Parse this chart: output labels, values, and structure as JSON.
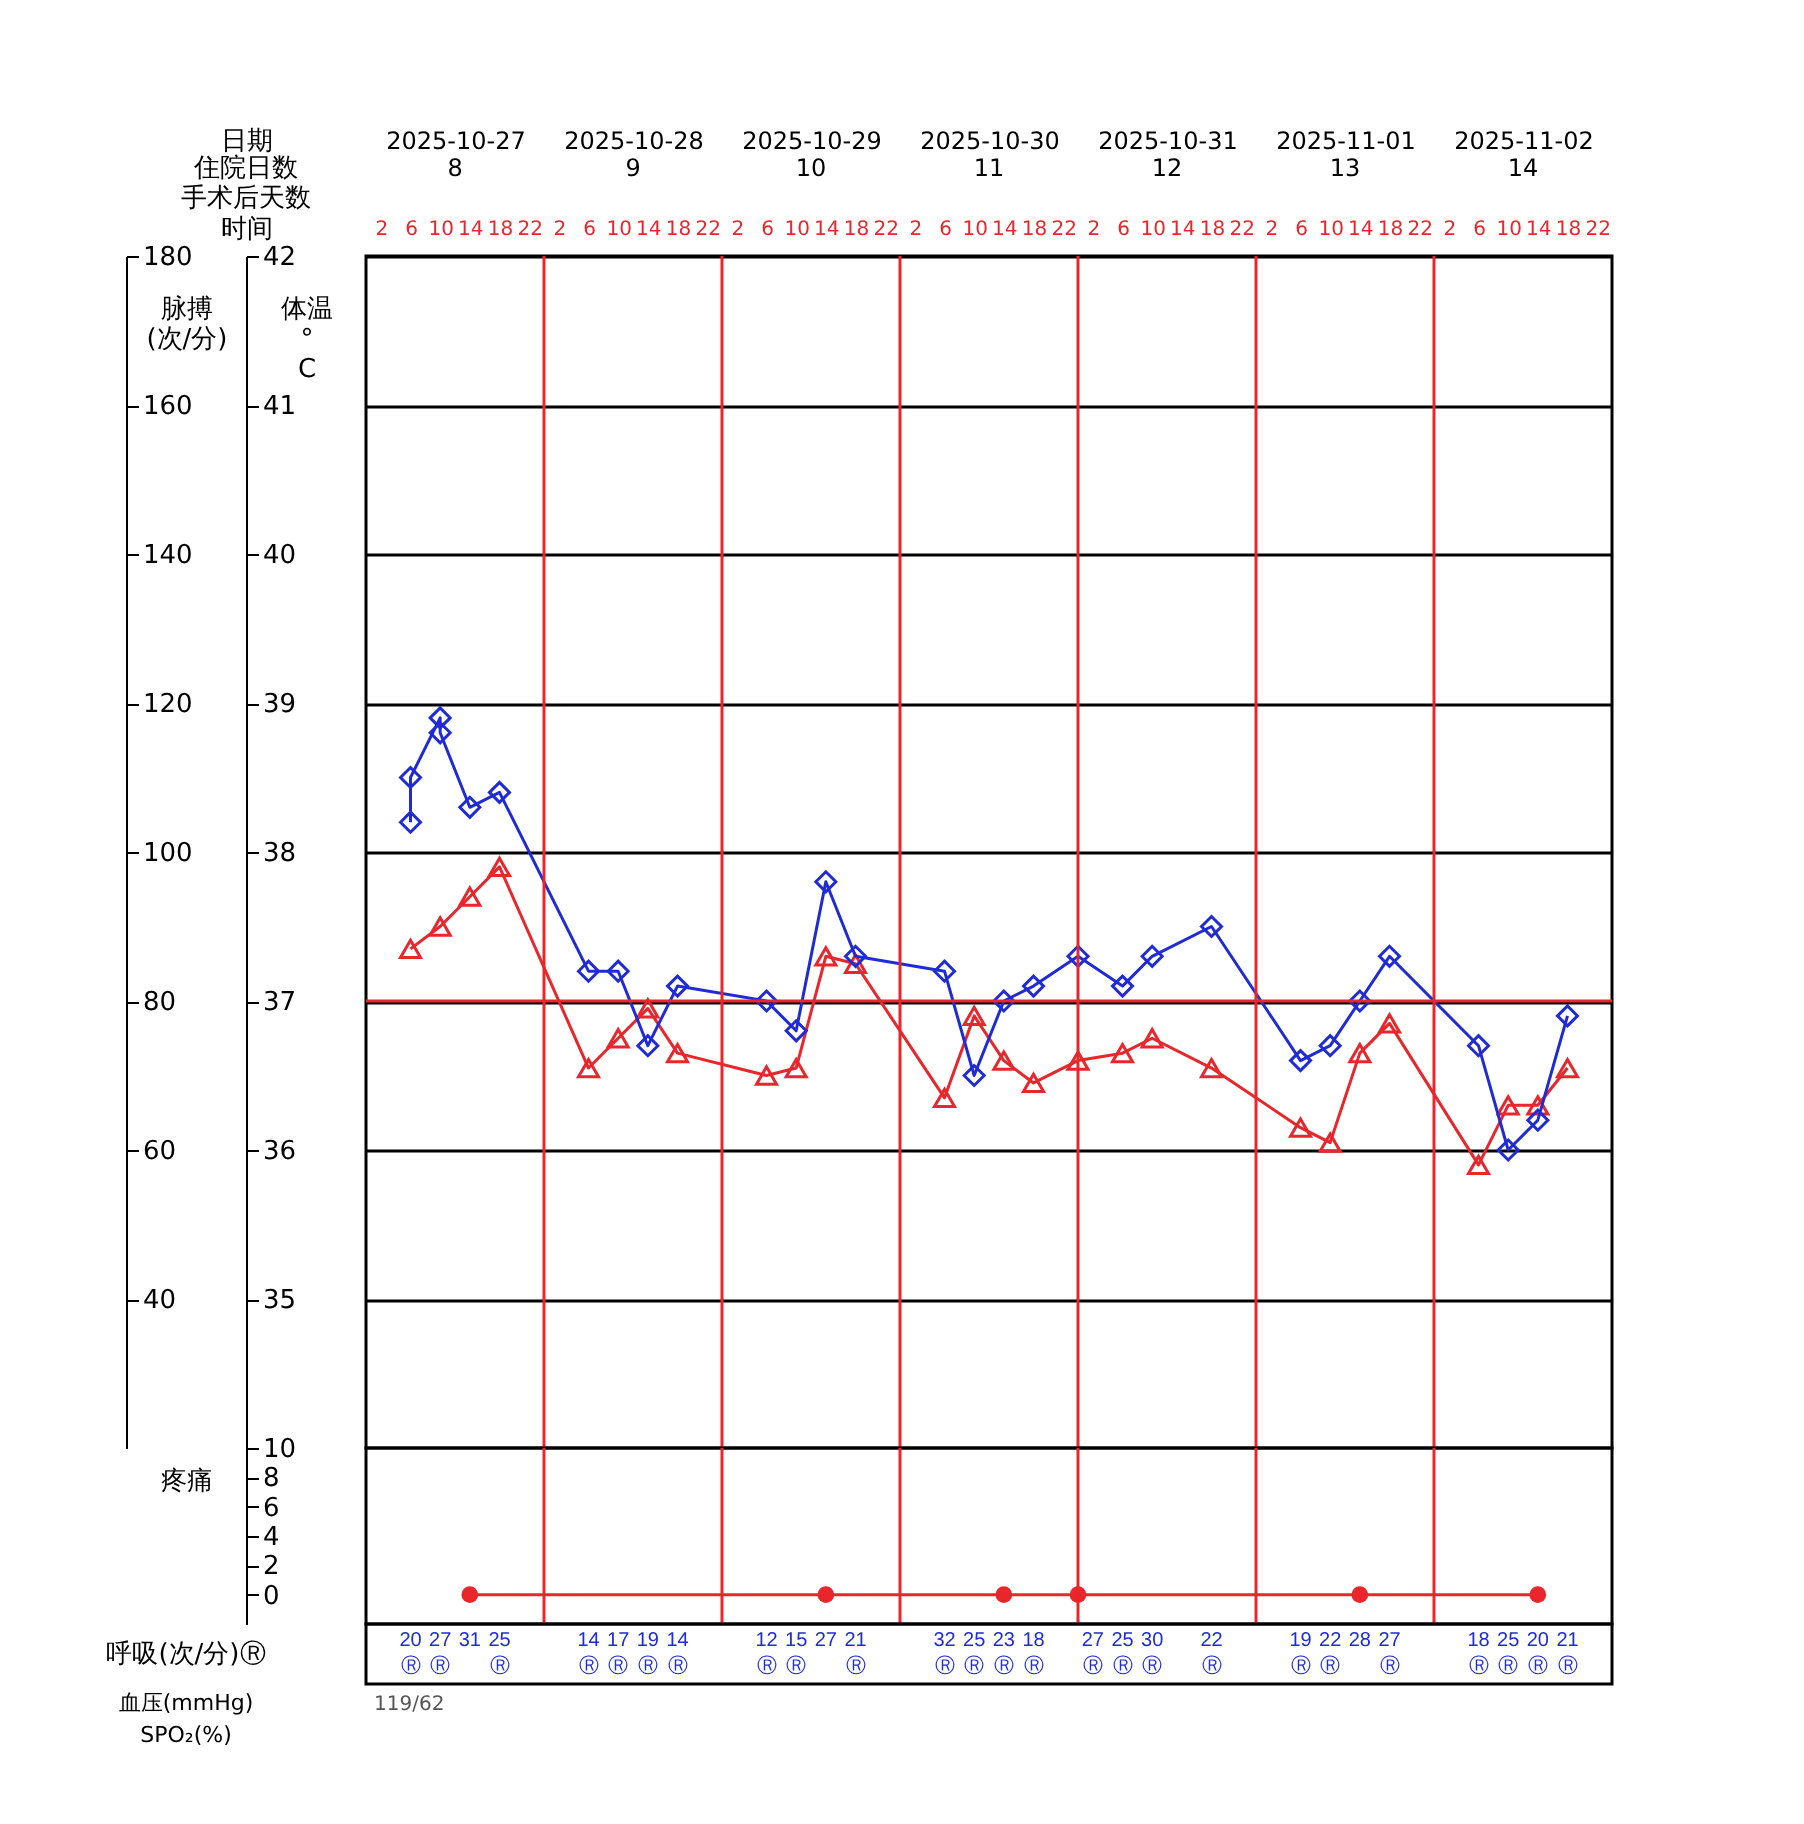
{
  "chart_data": [
    {
      "type": "line",
      "xlabel": "时间",
      "x2label": "日期",
      "ylabel": "脉搏 (次/分)",
      "y2label": "体温 ° C",
      "xlim": [
        "2025-10-27T00:00",
        "2025-11-03T00:00"
      ],
      "xticks": [
        {
          "value": "2025-10-27T02:00",
          "label": "2"
        },
        {
          "value": "2025-10-27T06:00",
          "label": "6"
        },
        {
          "value": "2025-10-27T10:00",
          "label": "10"
        },
        {
          "value": "2025-10-27T14:00",
          "label": "14"
        },
        {
          "value": "2025-10-27T18:00",
          "label": "18"
        },
        {
          "value": "2025-10-27T22:00",
          "label": "22"
        },
        {
          "value": "2025-10-28T02:00",
          "label": "2"
        },
        {
          "value": "2025-10-28T06:00",
          "label": "6"
        },
        {
          "value": "2025-10-28T10:00",
          "label": "10"
        },
        {
          "value": "2025-10-28T14:00",
          "label": "14"
        },
        {
          "value": "2025-10-28T18:00",
          "label": "18"
        },
        {
          "value": "2025-10-28T22:00",
          "label": "22"
        },
        {
          "value": "2025-10-29T02:00",
          "label": "2"
        },
        {
          "value": "2025-10-29T06:00",
          "label": "6"
        },
        {
          "value": "2025-10-29T10:00",
          "label": "10"
        },
        {
          "value": "2025-10-29T14:00",
          "label": "14"
        },
        {
          "value": "2025-10-29T18:00",
          "label": "18"
        },
        {
          "value": "2025-10-29T22:00",
          "label": "22"
        },
        {
          "value": "2025-10-30T02:00",
          "label": "2"
        },
        {
          "value": "2025-10-30T06:00",
          "label": "6"
        },
        {
          "value": "2025-10-30T10:00",
          "label": "10"
        },
        {
          "value": "2025-10-30T14:00",
          "label": "14"
        },
        {
          "value": "2025-10-30T18:00",
          "label": "18"
        },
        {
          "value": "2025-10-30T22:00",
          "label": "22"
        },
        {
          "value": "2025-10-31T02:00",
          "label": "2"
        },
        {
          "value": "2025-10-31T06:00",
          "label": "6"
        },
        {
          "value": "2025-10-31T10:00",
          "label": "10"
        },
        {
          "value": "2025-10-31T14:00",
          "label": "14"
        },
        {
          "value": "2025-10-31T18:00",
          "label": "18"
        },
        {
          "value": "2025-10-31T22:00",
          "label": "22"
        },
        {
          "value": "2025-11-01T02:00",
          "label": "2"
        },
        {
          "value": "2025-11-01T06:00",
          "label": "6"
        },
        {
          "value": "2025-11-01T10:00",
          "label": "10"
        },
        {
          "value": "2025-11-01T14:00",
          "label": "14"
        },
        {
          "value": "2025-11-01T18:00",
          "label": "18"
        },
        {
          "value": "2025-11-01T22:00",
          "label": "22"
        },
        {
          "value": "2025-11-02T02:00",
          "label": "2"
        },
        {
          "value": "2025-11-02T06:00",
          "label": "6"
        },
        {
          "value": "2025-11-02T10:00",
          "label": "10"
        },
        {
          "value": "2025-11-02T14:00",
          "label": "14"
        },
        {
          "value": "2025-11-02T18:00",
          "label": "18"
        },
        {
          "value": "2025-11-02T22:00",
          "label": "22"
        }
      ],
      "x2lim": [
        "2025-10-27T00:00",
        "2025-11-03T00:00"
      ],
      "x2ticks": [
        {
          "value": "2025-10-27T12:00",
          "label": "2025-10-27"
        },
        {
          "value": "2025-10-28T12:00",
          "label": "2025-10-28"
        },
        {
          "value": "2025-10-29T12:00",
          "label": "2025-10-29"
        },
        {
          "value": "2025-10-30T12:00",
          "label": "2025-10-30"
        },
        {
          "value": "2025-10-31T12:00",
          "label": "2025-10-31"
        },
        {
          "value": "2025-11-01T12:00",
          "label": "2025-11-01"
        },
        {
          "value": "2025-11-02T12:00",
          "label": "2025-11-02"
        }
      ],
      "ylim": [
        20,
        180
      ],
      "yticks": [
        40,
        60,
        80,
        100,
        120,
        140,
        160,
        180
      ],
      "y2lim": [
        34,
        42
      ],
      "y2ticks": [
        35,
        36,
        37,
        38,
        39,
        40,
        41,
        42
      ],
      "grid": "y",
      "annotations": [
        "住院日数",
        "8",
        "9",
        "10",
        "11",
        "12",
        "13",
        "14",
        "手术后天数"
      ],
      "ref_lines": [
        {
          "axis": "x",
          "value": "2025-10-28T00:00",
          "color": "#e8262b"
        },
        {
          "axis": "x",
          "value": "2025-10-29T00:00",
          "color": "#e8262b"
        },
        {
          "axis": "x",
          "value": "2025-10-30T00:00",
          "color": "#e8262b"
        },
        {
          "axis": "x",
          "value": "2025-10-31T00:00",
          "color": "#e8262b"
        },
        {
          "axis": "x",
          "value": "2025-11-01T00:00",
          "color": "#e8262b"
        },
        {
          "axis": "x",
          "value": "2025-11-02T00:00",
          "color": "#e8262b"
        },
        {
          "axis": "y2",
          "value": 37,
          "color": "#e8262b"
        }
      ],
      "series": [
        {
          "color": "#e8262b",
          "marker": "triangle",
          "x": [
            "2025-10-27T06:00",
            "2025-10-27T10:00",
            "2025-10-27T14:00",
            "2025-10-27T18:00",
            "2025-10-28T06:00",
            "2025-10-28T10:00",
            "2025-10-28T14:00",
            "2025-10-28T18:00",
            "2025-10-29T06:00",
            "2025-10-29T10:00",
            "2025-10-29T14:00",
            "2025-10-29T18:00",
            "2025-10-30T06:00",
            "2025-10-30T10:00",
            "2025-10-30T14:00",
            "2025-10-30T18:00",
            "2025-10-31T00:00",
            "2025-10-31T06:00",
            "2025-10-31T10:00",
            "2025-10-31T18:00",
            "2025-11-01T06:00",
            "2025-11-01T10:00",
            "2025-11-01T14:00",
            "2025-11-01T18:00",
            "2025-11-02T06:00",
            "2025-11-02T10:00",
            "2025-11-02T14:00",
            "2025-11-02T18:00"
          ],
          "values": [
            87,
            90,
            94,
            98,
            71,
            75,
            79,
            73,
            70,
            71,
            86,
            85,
            67,
            78,
            72,
            69,
            72,
            73,
            75,
            71,
            63,
            61,
            73,
            77,
            58,
            66,
            66,
            71
          ]
        },
        {
          "color": "#1f2bd6",
          "marker": "diamond",
          "axis": "y2",
          "x": [
            "2025-10-27T06:00",
            "2025-10-27T06:00",
            "2025-10-27T10:00",
            "2025-10-27T10:00",
            "2025-10-27T14:00",
            "2025-10-27T18:00",
            "2025-10-28T06:00",
            "2025-10-28T10:00",
            "2025-10-28T14:00",
            "2025-10-28T18:00",
            "2025-10-29T06:00",
            "2025-10-29T10:00",
            "2025-10-29T14:00",
            "2025-10-29T18:00",
            "2025-10-30T06:00",
            "2025-10-30T10:00",
            "2025-10-30T14:00",
            "2025-10-30T18:00",
            "2025-10-31T00:00",
            "2025-10-31T06:00",
            "2025-10-31T10:00",
            "2025-10-31T18:00",
            "2025-11-01T06:00",
            "2025-11-01T10:00",
            "2025-11-01T14:00",
            "2025-11-01T18:00",
            "2025-11-02T06:00",
            "2025-11-02T10:00",
            "2025-11-02T14:00",
            "2025-11-02T18:00"
          ],
          "values": [
            38.2,
            38.5,
            38.9,
            38.8,
            38.3,
            38.4,
            37.2,
            37.2,
            36.7,
            37.1,
            37.0,
            36.8,
            37.8,
            37.3,
            37.2,
            36.5,
            37.0,
            37.1,
            37.3,
            37.1,
            37.3,
            37.5,
            36.6,
            36.7,
            37.0,
            37.3,
            36.7,
            36.0,
            36.2,
            36.9
          ]
        }
      ]
    },
    {
      "type": "line",
      "ylabel": "疼痛",
      "xlim": [
        "2025-10-27T00:00",
        "2025-11-03T00:00"
      ],
      "ylim": [
        -2,
        10
      ],
      "yticks": [
        0,
        2,
        4,
        6,
        8,
        10
      ],
      "ref_lines": [
        {
          "axis": "x",
          "value": "2025-10-28T00:00",
          "color": "#e8262b"
        },
        {
          "axis": "x",
          "value": "2025-10-29T00:00",
          "color": "#e8262b"
        },
        {
          "axis": "x",
          "value": "2025-10-30T00:00",
          "color": "#e8262b"
        },
        {
          "axis": "x",
          "value": "2025-10-31T00:00",
          "color": "#e8262b"
        },
        {
          "axis": "x",
          "value": "2025-11-01T00:00",
          "color": "#e8262b"
        },
        {
          "axis": "x",
          "value": "2025-11-02T00:00",
          "color": "#e8262b"
        }
      ],
      "series": [
        {
          "color": "#e8262b",
          "marker": "circle",
          "x": [
            "2025-10-27T14:00",
            "2025-10-29T14:00",
            "2025-10-30T14:00",
            "2025-10-31T00:00",
            "2025-11-01T14:00",
            "2025-11-02T14:00"
          ],
          "values": [
            0,
            0,
            0,
            0,
            0,
            0
          ]
        }
      ]
    },
    {
      "type": "other",
      "ylabel": "呼吸(次/分)Ⓡ",
      "categories": [
        null,
        null,
        null,
        null,
        null,
        null,
        null,
        null,
        null,
        null,
        null,
        null,
        null,
        null,
        null,
        null,
        null,
        null,
        null,
        null,
        null,
        null,
        null,
        null,
        null,
        null,
        null,
        null,
        null,
        null,
        null,
        null,
        null,
        null,
        null,
        null,
        null,
        null,
        null,
        null,
        null,
        null
      ],
      "value_labels": [
        null,
        "20\nⓇ",
        "27\nⓇ",
        "31",
        "25\nⓇ",
        null,
        null,
        "14\nⓇ",
        "17\nⓇ",
        "19\nⓇ",
        "14\nⓇ",
        null,
        null,
        "12\nⓇ",
        "15\nⓇ",
        "27",
        "21\nⓇ",
        null,
        null,
        "32\nⓇ",
        "25\nⓇ",
        "23\nⓇ",
        "18\nⓇ",
        null,
        "27\nⓇ",
        "25\nⓇ",
        "30\nⓇ",
        null,
        "22\nⓇ",
        null,
        null,
        "19\nⓇ",
        "22\nⓇ",
        "28",
        "27\nⓇ",
        null,
        null,
        "18\nⓇ",
        "25\nⓇ",
        "20\nⓇ",
        "21\nⓇ",
        null
      ],
      "annotations": [
        "血压(mmHg)",
        "119/62",
        "SPO₂(%)"
      ]
    }
  ]
}
